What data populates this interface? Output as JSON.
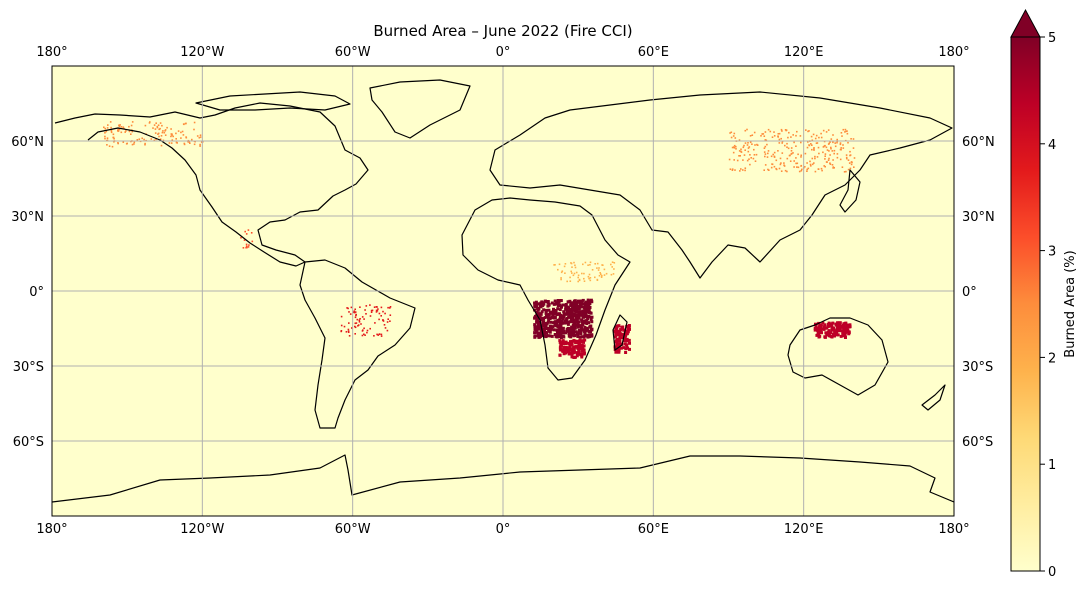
{
  "title": "Burned Area – June 2022 (Fire CCI)",
  "lon_ticks": [
    "180°",
    "120°W",
    "60°W",
    "0°",
    "60°E",
    "120°E",
    "180°"
  ],
  "lat_ticks": [
    "60°N",
    "30°N",
    "0°",
    "30°S",
    "60°S"
  ],
  "colorbar": {
    "label": "Burned Area (%)",
    "ticks": [
      "0",
      "1",
      "2",
      "3",
      "4",
      "5"
    ],
    "range": [
      0,
      5
    ],
    "extend": "max",
    "colormap": [
      "#ffffcc",
      "#ffeda0",
      "#fed976",
      "#feb24c",
      "#fd8d3c",
      "#fc4e2a",
      "#e31a1c",
      "#bd0026",
      "#800026"
    ]
  },
  "colors": {
    "ocean_land_bg": "#ffffcc",
    "burn": "#800026",
    "grid": "#b0b0b0",
    "coast": "#000000"
  },
  "chart_data": {
    "type": "heatmap",
    "projection": "plate-carree",
    "lon_range": [
      -180,
      180
    ],
    "lat_range": [
      -90,
      90
    ],
    "grid": true,
    "hotspots": [
      {
        "lon": [
          12,
          35
        ],
        "lat": [
          -18,
          -3
        ],
        "level": 5
      },
      {
        "lon": [
          22,
          32
        ],
        "lat": [
          -26,
          -19
        ],
        "level": 4.5
      },
      {
        "lon": [
          44,
          50
        ],
        "lat": [
          -24,
          -13
        ],
        "level": 4.5
      },
      {
        "lon": [
          124,
          138
        ],
        "lat": [
          -18,
          -12
        ],
        "level": 4.5
      },
      {
        "lon": [
          -65,
          -45
        ],
        "lat": [
          -18,
          -5
        ],
        "level": 3.5
      },
      {
        "lon": [
          -105,
          -100
        ],
        "lat": [
          17,
          25
        ],
        "level": 3
      },
      {
        "lon": [
          -160,
          -120
        ],
        "lat": [
          58,
          68
        ],
        "level": 2.5
      },
      {
        "lon": [
          90,
          140
        ],
        "lat": [
          48,
          65
        ],
        "level": 2.5
      },
      {
        "lon": [
          20,
          45
        ],
        "lat": [
          4,
          12
        ],
        "level": 2
      }
    ]
  }
}
